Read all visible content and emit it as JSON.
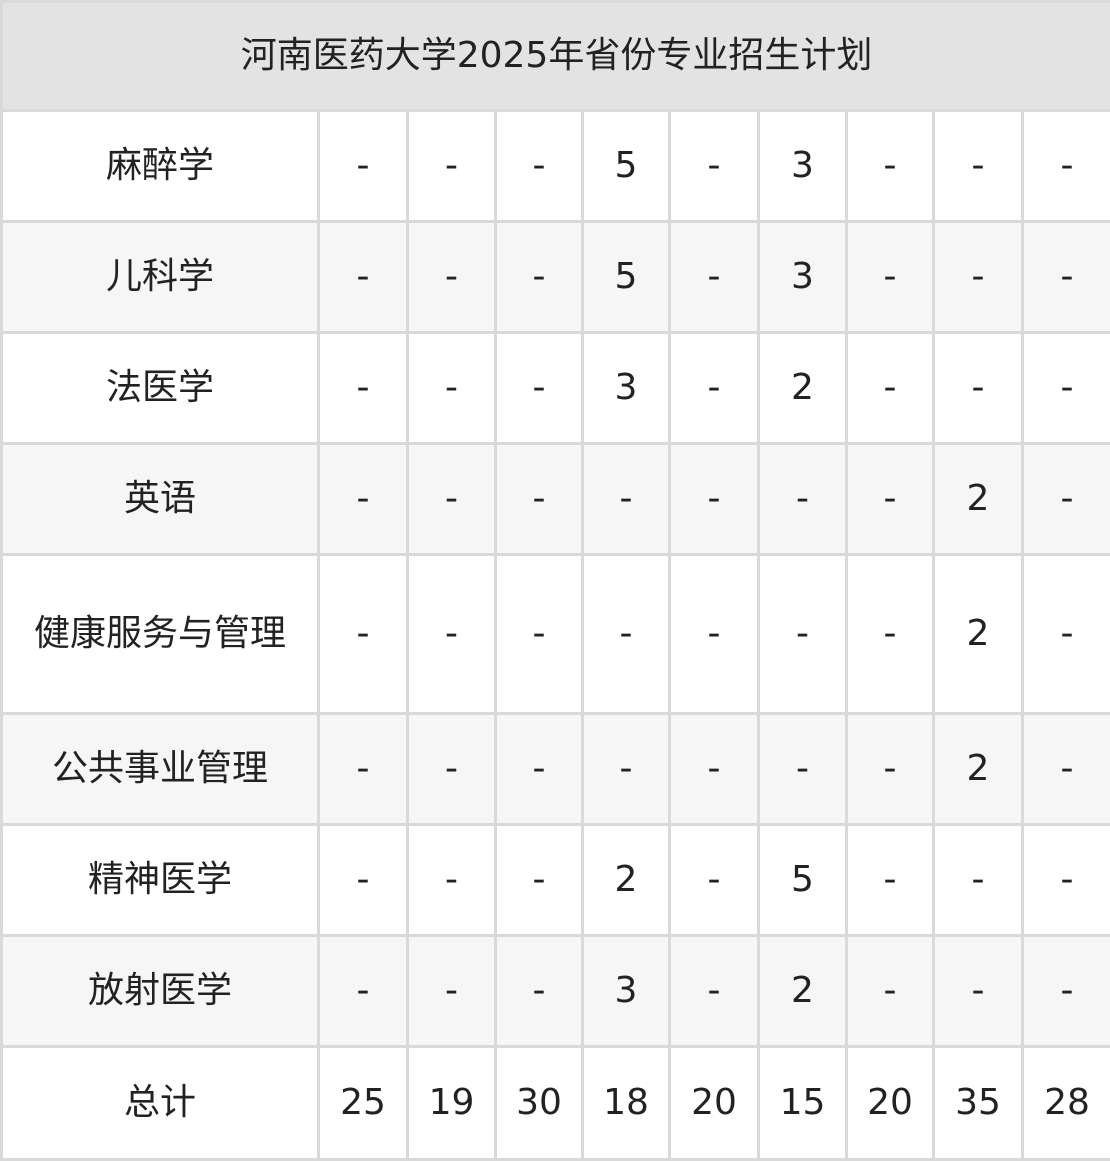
{
  "title": "河南医药大学2025年省份专业招生计划",
  "rows": [
    {
      "name": "麻醉学",
      "values": [
        "-",
        "-",
        "-",
        "5",
        "-",
        "3",
        "-",
        "-",
        "-"
      ]
    },
    {
      "name": "儿科学",
      "values": [
        "-",
        "-",
        "-",
        "5",
        "-",
        "3",
        "-",
        "-",
        "-"
      ]
    },
    {
      "name": "法医学",
      "values": [
        "-",
        "-",
        "-",
        "3",
        "-",
        "2",
        "-",
        "-",
        "-"
      ]
    },
    {
      "name": "英语",
      "values": [
        "-",
        "-",
        "-",
        "-",
        "-",
        "-",
        "-",
        "2",
        "-"
      ]
    },
    {
      "name": "健康服务与管理",
      "values": [
        "-",
        "-",
        "-",
        "-",
        "-",
        "-",
        "-",
        "2",
        "-"
      ]
    },
    {
      "name": "公共事业管理",
      "values": [
        "-",
        "-",
        "-",
        "-",
        "-",
        "-",
        "-",
        "2",
        "-"
      ]
    },
    {
      "name": "精神医学",
      "values": [
        "-",
        "-",
        "-",
        "2",
        "-",
        "5",
        "-",
        "-",
        "-"
      ]
    },
    {
      "name": "放射医学",
      "values": [
        "-",
        "-",
        "-",
        "3",
        "-",
        "2",
        "-",
        "-",
        "-"
      ]
    }
  ],
  "total": {
    "name": "总计",
    "values": [
      "25",
      "19",
      "30",
      "18",
      "20",
      "15",
      "20",
      "35",
      "28"
    ]
  }
}
